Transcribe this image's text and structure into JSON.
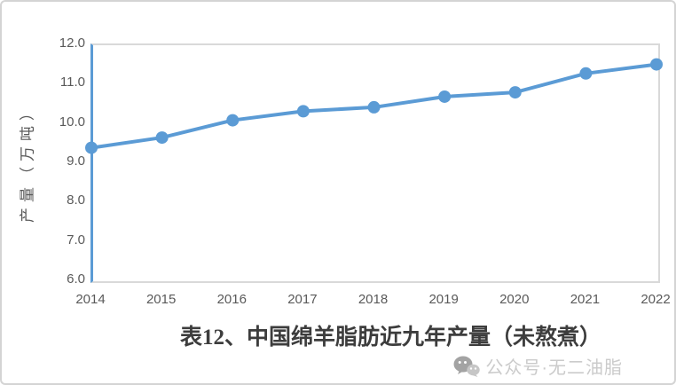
{
  "chart_data": {
    "type": "line",
    "title": "表12、中国绵羊脂肪近九年产量（未熬煮）",
    "xlabel": "",
    "ylabel": "产量（万吨）",
    "x": [
      2014,
      2015,
      2016,
      2017,
      2018,
      2019,
      2020,
      2021,
      2022
    ],
    "series": [
      {
        "name": "产量",
        "values": [
          9.37,
          9.63,
          10.07,
          10.3,
          10.4,
          10.67,
          10.78,
          11.26,
          11.49
        ]
      }
    ],
    "ylim": [
      6.0,
      12.0
    ],
    "ytick_step": 1.0,
    "yticks": [
      "12.0",
      "11.0",
      "10.0",
      "9.0",
      "8.0",
      "7.0",
      "6.0"
    ],
    "grid": false,
    "legend": false,
    "marker": "circle",
    "line_color": "#5b9bd5"
  },
  "watermark": {
    "icon": "wechat-icon",
    "text": "公众号·无二油脂"
  },
  "colors": {
    "line": "#5b9bd5",
    "axis_line": "#5b9bd5",
    "plot_border": "#d9d9d9",
    "tick_label": "#595959",
    "title_text": "#3d3d3d",
    "watermark_text": "#cbcbcb"
  }
}
